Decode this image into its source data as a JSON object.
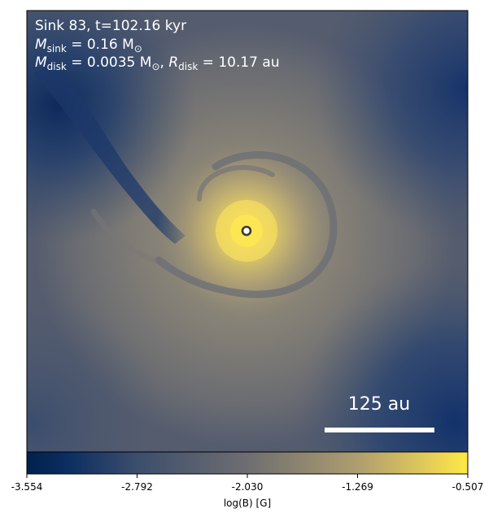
{
  "annotations": {
    "line1": "Sink 83, t=102.16 kyr",
    "line2_sym": "M",
    "line2_sub": "sink",
    "line2_rest": " = 0.16 M",
    "line2_sun": "⊙",
    "line3_sym": "M",
    "line3_sub": "disk",
    "line3_rest": " = 0.0035 M",
    "line3_sun": "⊙",
    "line3_sep": ", ",
    "line3_r": "R",
    "line3_rsub": "disk",
    "line3_rval": " = 10.17 au"
  },
  "scalebar": {
    "label": "125 au"
  },
  "colorbar": {
    "label": "log(B) [G]",
    "ticks": [
      "-3.554",
      "-2.792",
      "-2.030",
      "-1.269",
      "-0.507"
    ],
    "colors": [
      "#00204c",
      "#31446b",
      "#666970",
      "#958f78",
      "#cbba69",
      "#ffe945"
    ]
  },
  "sink": {
    "marker": "circle"
  }
}
